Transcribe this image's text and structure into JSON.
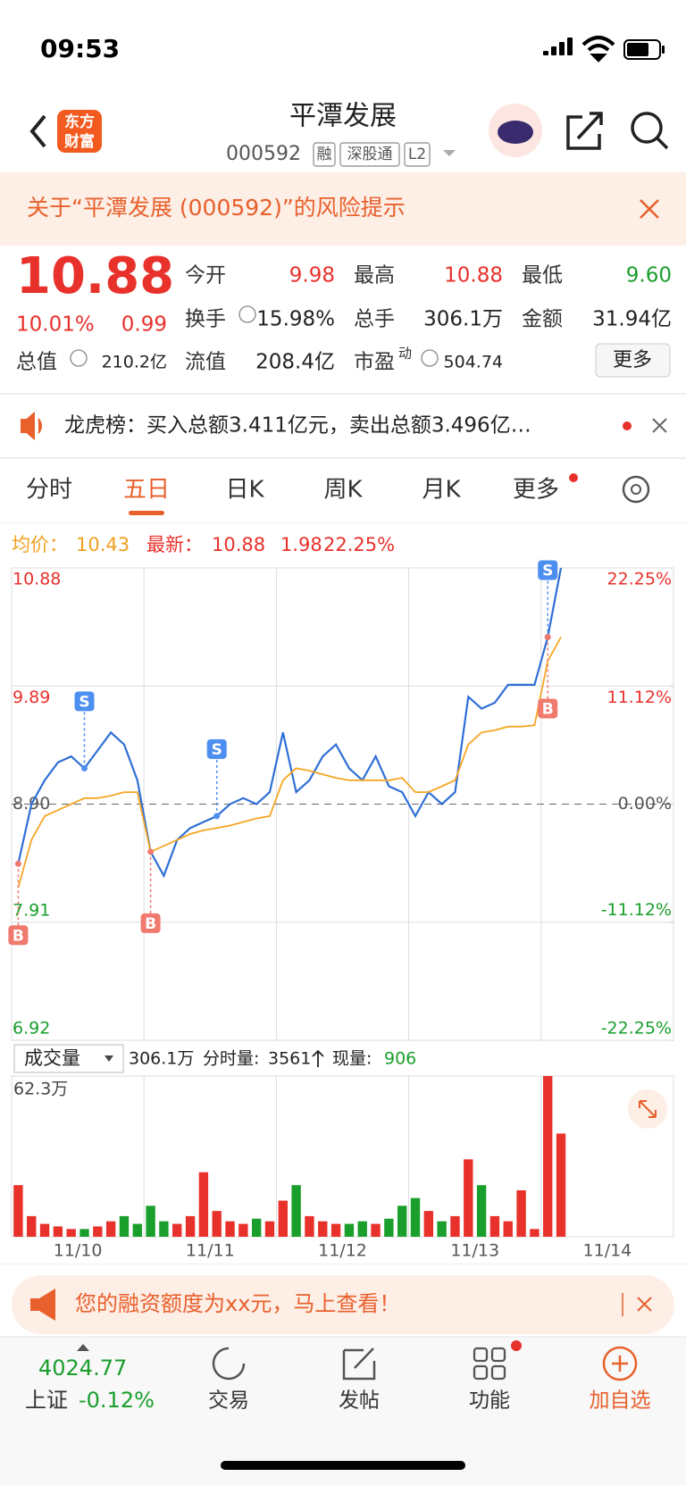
{
  "status_bar": {
    "time": "09:53"
  },
  "header": {
    "logo": [
      "东方",
      "财富"
    ],
    "title": "平潭发展",
    "code": "000592",
    "tags": [
      "融",
      "深股通",
      "L2"
    ]
  },
  "risk_banner": {
    "text": "关于“平潭发展 (000592)”的风险提示"
  },
  "quote": {
    "price": "10.88",
    "change_pct": "10.01%",
    "change": "0.99",
    "fields": [
      {
        "label": "今开",
        "value": "9.98",
        "color": "#e8312b"
      },
      {
        "label": "最高",
        "value": "10.88",
        "color": "#e8312b"
      },
      {
        "label": "最低",
        "value": "9.60",
        "color": "#1a9e2c"
      },
      {
        "label": "换手",
        "value": "15.98%",
        "color": "#222222"
      },
      {
        "label": "总手",
        "value": "306.1万",
        "color": "#222222"
      },
      {
        "label": "金额",
        "value": "31.94亿",
        "color": "#222222"
      },
      {
        "label": "总值",
        "value": "210.2亿",
        "color": "#222222"
      },
      {
        "label": "流值",
        "value": "208.4亿",
        "color": "#222222"
      },
      {
        "label": "市盈",
        "sup": "动",
        "value": "504.74",
        "color": "#222222"
      }
    ],
    "more": "更多"
  },
  "notice": {
    "text": "龙虎榜：买入总额3.411亿元，卖出总额3.496亿…"
  },
  "tabs": {
    "items": [
      "分时",
      "五日",
      "日K",
      "周K",
      "月K",
      "更多"
    ],
    "active": 1
  },
  "chart_info": {
    "avg_label": "均价：",
    "avg": "10.43",
    "latest_label": "最新：",
    "latest": "10.88",
    "change": "1.98",
    "change_pct": "22.25%"
  },
  "chart_data": [
    {
      "type": "line",
      "day_labels": [
        "11/10",
        "11/11",
        "11/12",
        "11/13",
        "11/14"
      ],
      "ylim": [
        6.92,
        10.88
      ],
      "yticks": [
        10.88,
        9.89,
        {
          "value": 8.9,
          "label": "8.90"
        },
        7.91,
        6.92
      ],
      "y2lim": [
        -22.25,
        22.25
      ],
      "y2ticks": [
        {
          "value": 22.25,
          "label": "22.25%"
        },
        {
          "value": 11.12,
          "label": "11.12%"
        },
        {
          "value": 0,
          "label": "0.00%"
        },
        {
          "value": -11.12,
          "label": "-11.12%"
        },
        {
          "value": -22.25,
          "label": "-22.25%"
        }
      ],
      "grid": true,
      "series": [
        {
          "color": "#2f6fd6",
          "values": [
            8.4,
            8.9,
            9.1,
            9.25,
            9.3,
            9.2,
            9.35,
            9.5,
            9.4,
            9.1,
            8.5,
            8.3,
            8.6,
            8.7,
            8.75,
            8.8,
            8.9,
            8.95,
            8.9,
            9.0,
            9.5,
            9.0,
            9.1,
            9.3,
            9.4,
            9.2,
            9.1,
            9.3,
            9.05,
            9.0,
            8.8,
            9.0,
            8.9,
            9.0,
            9.8,
            9.7,
            9.75,
            9.9,
            9.9,
            9.9,
            10.3,
            10.88,
            null,
            null,
            null,
            null,
            null,
            null,
            null,
            null
          ]
        },
        {
          "color": "#f5a623",
          "values": [
            8.2,
            8.6,
            8.8,
            8.85,
            8.9,
            8.95,
            8.95,
            8.97,
            9.0,
            9.0,
            8.5,
            8.55,
            8.6,
            8.65,
            8.68,
            8.7,
            8.72,
            8.75,
            8.78,
            8.8,
            9.1,
            9.2,
            9.18,
            9.15,
            9.12,
            9.1,
            9.1,
            9.1,
            9.1,
            9.12,
            9.0,
            9.0,
            9.05,
            9.1,
            9.4,
            9.5,
            9.52,
            9.55,
            9.55,
            9.56,
            10.1,
            10.3,
            null,
            null,
            null,
            null,
            null,
            null,
            null,
            null
          ]
        }
      ],
      "signals": [
        {
          "label": "B",
          "index": 0
        },
        {
          "label": "S",
          "index": 5
        },
        {
          "label": "B",
          "index": 10
        },
        {
          "label": "S",
          "index": 15
        },
        {
          "label": "S",
          "index": 40
        },
        {
          "label": "B",
          "index": 40
        }
      ]
    },
    {
      "type": "bar",
      "label": "成交量",
      "total": "306.1万",
      "tick_volume_label": "分时量:",
      "tick_volume": "3561",
      "current_label": "现量:",
      "current": "906",
      "ylim": [
        0,
        62.3
      ],
      "yticks": [
        {
          "value": 62.3,
          "label": "62.3万"
        }
      ],
      "up_color": "#e8312b",
      "down_color": "#1a9e2c",
      "values": [
        20,
        8,
        5,
        4,
        3,
        3,
        4,
        6,
        8,
        5,
        12,
        6,
        5,
        8,
        25,
        10,
        6,
        5,
        7,
        6,
        14,
        20,
        8,
        6,
        5,
        5,
        6,
        5,
        7,
        12,
        15,
        10,
        6,
        8,
        30,
        20,
        8,
        6,
        18,
        3,
        62.3,
        40,
        null,
        null,
        null,
        null,
        null,
        null,
        null,
        null
      ]
    }
  ],
  "ad": {
    "text": "您的融资额度为xx元，马上查看！"
  },
  "bottom_nav": {
    "index_value": "4024.77",
    "index_name": "上证",
    "index_change": "-0.12%",
    "items": [
      "交易",
      "发帖",
      "功能",
      "加自选"
    ]
  }
}
